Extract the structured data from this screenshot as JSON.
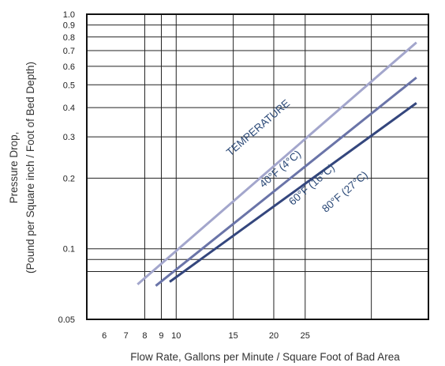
{
  "chart_data": {
    "type": "line",
    "title": "",
    "xlabel": "Flow Rate, Gallons per Minute / Square Foot of Bad Area",
    "ylabel_line1": "Pressure Drop,",
    "ylabel_line2": "(Pound per Square inch / Foot of Bed Depth)",
    "y_scale": "log",
    "ylim": [
      0.05,
      1.0
    ],
    "y_ticks": [
      {
        "value": 0.05,
        "label": "0.05"
      },
      {
        "value": 0.1,
        "label": "0.1"
      },
      {
        "value": 0.2,
        "label": "0.2"
      },
      {
        "value": 0.3,
        "label": "0.3"
      },
      {
        "value": 0.4,
        "label": "0.4"
      },
      {
        "value": 0.5,
        "label": "0.5"
      },
      {
        "value": 0.6,
        "label": "0.6"
      },
      {
        "value": 0.7,
        "label": "0.7"
      },
      {
        "value": 0.8,
        "label": "0.8"
      },
      {
        "value": 0.9,
        "label": "0.9"
      },
      {
        "value": 1.0,
        "label": "1.0"
      }
    ],
    "y_extra_gridlines": [
      0.09,
      0.08
    ],
    "x_scale": "log",
    "xlim": [
      5.3,
      60
    ],
    "x_ticks": [
      {
        "value": 6,
        "label": "6"
      },
      {
        "value": 7,
        "label": "7"
      },
      {
        "value": 8,
        "label": "8"
      },
      {
        "value": 9,
        "label": "9"
      },
      {
        "value": 10,
        "label": "10"
      },
      {
        "value": 15,
        "label": "15"
      },
      {
        "value": 20,
        "label": "20"
      },
      {
        "value": 25,
        "label": "25"
      }
    ],
    "x_gridlines": [
      8,
      9,
      10,
      15,
      20,
      25,
      40
    ],
    "grid": true,
    "legend": "none",
    "annotation_text": "TEMPERATURE",
    "annotation_color": "#2c4a78",
    "series": [
      {
        "name": "40°F (4°C)",
        "color": "#a3a6cc",
        "points": [
          [
            7.6,
            0.0705
          ],
          [
            55.1,
            0.758
          ]
        ]
      },
      {
        "name": "60°F (16°C)",
        "color": "#6a74a8",
        "points": [
          [
            8.65,
            0.0695
          ],
          [
            55.1,
            0.537
          ]
        ]
      },
      {
        "name": "80°F (27°C)",
        "color": "#34467d",
        "points": [
          [
            9.55,
            0.0723
          ],
          [
            55.1,
            0.418
          ]
        ]
      }
    ]
  }
}
